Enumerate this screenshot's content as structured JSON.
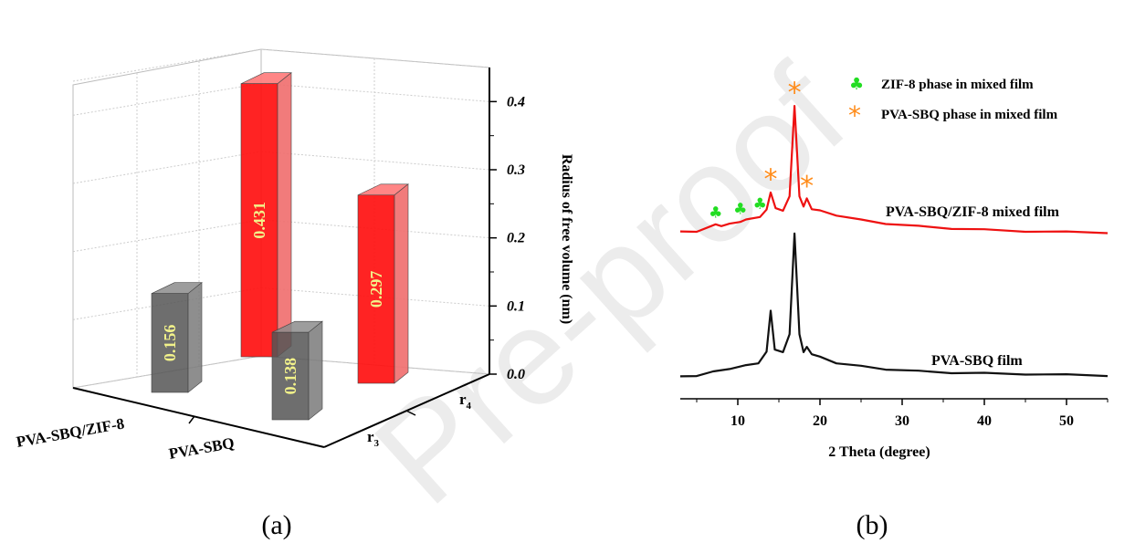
{
  "watermark": "Pre-proof",
  "panel_a": {
    "caption": "(a)",
    "chart_data": {
      "type": "bar",
      "x_categories": [
        "PVA-SBQ/ZIF-8",
        "PVA-SBQ"
      ],
      "y_categories": [
        "r3",
        "r4"
      ],
      "y_tick_labels": [
        {
          "main": "r",
          "sub": "3"
        },
        {
          "main": "r",
          "sub": "4"
        }
      ],
      "zlabel": "Radius of free volume (nm)",
      "zlim": [
        0,
        0.45
      ],
      "zticks": [
        "0.0",
        "0.1",
        "0.2",
        "0.3",
        "0.4"
      ],
      "grid": true,
      "bars": [
        {
          "x": "PVA-SBQ/ZIF-8",
          "y": "r3",
          "value": 0.156,
          "label": "0.156",
          "color": "#555555"
        },
        {
          "x": "PVA-SBQ/ZIF-8",
          "y": "r4",
          "value": 0.431,
          "label": "0.431",
          "color": "#ff1010"
        },
        {
          "x": "PVA-SBQ",
          "y": "r3",
          "value": 0.138,
          "label": "0.138",
          "color": "#555555"
        },
        {
          "x": "PVA-SBQ",
          "y": "r4",
          "value": 0.297,
          "label": "0.297",
          "color": "#ff1010"
        }
      ]
    }
  },
  "panel_b": {
    "caption": "(b)",
    "chart_data": {
      "type": "line",
      "xlabel": "2 Theta (degree)",
      "xlim": [
        3,
        55
      ],
      "xticks": [
        "10",
        "20",
        "30",
        "40",
        "50"
      ],
      "legend": [
        {
          "symbol": "♣",
          "color": "#22dd22",
          "label": "ZIF-8 phase in mixed film"
        },
        {
          "symbol": "*",
          "color": "#ff8c1a",
          "label": "PVA-SBQ phase in mixed film"
        }
      ],
      "series": [
        {
          "name": "PVA-SBQ/ZIF-8 mixed film",
          "color": "#ee1111",
          "x": [
            3,
            5,
            7.3,
            8,
            9,
            10.3,
            11,
            12.7,
            13.5,
            14.0,
            14.6,
            15.5,
            16.3,
            16.9,
            17.5,
            18.0,
            18.4,
            19.0,
            20,
            22,
            25,
            28,
            32,
            36,
            40,
            45,
            50,
            55
          ],
          "y": [
            0.05,
            0.06,
            0.15,
            0.14,
            0.16,
            0.2,
            0.22,
            0.27,
            0.36,
            0.62,
            0.38,
            0.36,
            0.55,
            1.85,
            0.55,
            0.42,
            0.52,
            0.38,
            0.35,
            0.29,
            0.22,
            0.17,
            0.13,
            0.1,
            0.08,
            0.06,
            0.05,
            0.04
          ]
        },
        {
          "name": "PVA-SBQ film",
          "color": "#111111",
          "x": [
            3,
            5,
            7,
            9,
            11,
            12.5,
            13.5,
            14.0,
            14.5,
            15.5,
            16.3,
            16.9,
            17.5,
            18.0,
            18.4,
            19.0,
            20,
            22,
            25,
            28,
            32,
            36,
            40,
            45,
            50,
            55
          ],
          "y": [
            0.0,
            0.02,
            0.07,
            0.12,
            0.16,
            0.2,
            0.35,
            0.95,
            0.38,
            0.36,
            0.6,
            2.05,
            0.6,
            0.36,
            0.42,
            0.33,
            0.28,
            0.2,
            0.15,
            0.11,
            0.08,
            0.06,
            0.05,
            0.04,
            0.03,
            0.02
          ]
        }
      ],
      "markers": [
        {
          "series": "PVA-SBQ/ZIF-8 mixed film",
          "type": "ZIF-8",
          "x": 7.3
        },
        {
          "series": "PVA-SBQ/ZIF-8 mixed film",
          "type": "ZIF-8",
          "x": 10.3
        },
        {
          "series": "PVA-SBQ/ZIF-8 mixed film",
          "type": "ZIF-8",
          "x": 12.7
        },
        {
          "series": "PVA-SBQ/ZIF-8 mixed film",
          "type": "PVA-SBQ",
          "x": 14.0
        },
        {
          "series": "PVA-SBQ/ZIF-8 mixed film",
          "type": "PVA-SBQ",
          "x": 16.9
        },
        {
          "series": "PVA-SBQ/ZIF-8 mixed film",
          "type": "PVA-SBQ",
          "x": 18.4
        }
      ]
    }
  }
}
